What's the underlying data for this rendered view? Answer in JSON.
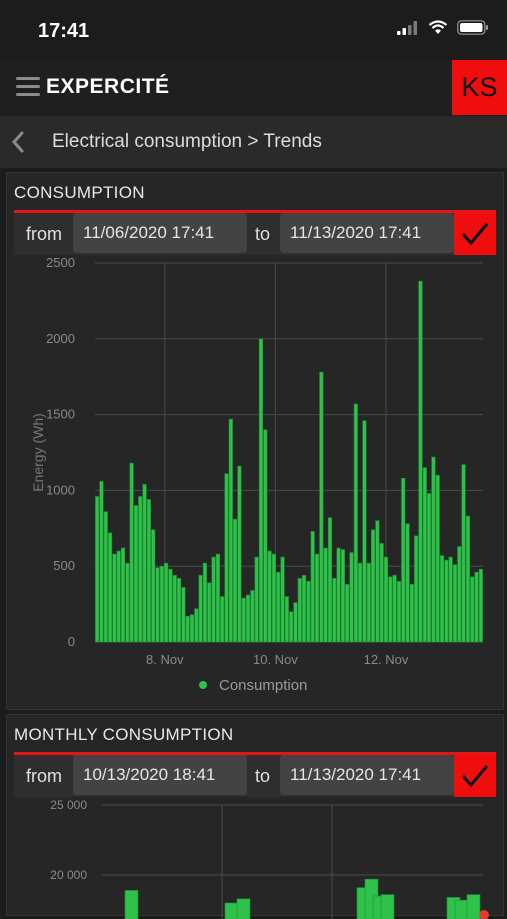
{
  "status_bar": {
    "time": "17:41"
  },
  "header": {
    "brand_prefix": "E",
    "brand_rest": "XPERCITÉ",
    "avatar_initials": "KS"
  },
  "breadcrumb": {
    "text": "Electrical consumption > Trends"
  },
  "consumption": {
    "title": "CONSUMPTION",
    "from_label": "from",
    "to_label": "to",
    "from_value": "11/06/2020 17:41",
    "to_value": "11/13/2020 17:41"
  },
  "monthly": {
    "title": "MONTHLY CONSUMPTION",
    "from_label": "from",
    "to_label": "to",
    "from_value": "10/13/2020 18:41",
    "to_value": "11/13/2020 17:41"
  },
  "colors": {
    "accent": "#ef0d0d",
    "bar": "#2ec24a",
    "bar_stroke": "#1f8f33"
  },
  "chart_data": [
    {
      "type": "bar",
      "title": "",
      "ylabel": "Energy (Wh)",
      "ylim": [
        0,
        2500
      ],
      "yticks": [
        "0",
        "500",
        "1000",
        "1500",
        "2000",
        "2500"
      ],
      "xticks": [
        "8. Nov",
        "10. Nov",
        "12. Nov"
      ],
      "legend": "Consumption",
      "legend_position": "bottom",
      "grid": true,
      "series": [
        {
          "name": "Consumption",
          "values": [
            960,
            1060,
            860,
            720,
            580,
            600,
            620,
            520,
            1180,
            900,
            960,
            1040,
            940,
            740,
            490,
            500,
            520,
            480,
            440,
            420,
            360,
            170,
            180,
            220,
            440,
            520,
            390,
            560,
            580,
            300,
            1110,
            1470,
            810,
            1160,
            290,
            310,
            340,
            560,
            2000,
            1400,
            600,
            580,
            460,
            560,
            300,
            200,
            260,
            420,
            440,
            400,
            730,
            580,
            1780,
            620,
            820,
            420,
            620,
            610,
            380,
            590,
            1570,
            520,
            1460,
            520,
            740,
            800,
            650,
            560,
            430,
            440,
            400,
            1080,
            780,
            380,
            700,
            2380,
            1150,
            980,
            1220,
            1100,
            570,
            540,
            560,
            510,
            630,
            1170,
            830,
            430,
            460,
            480
          ]
        }
      ]
    },
    {
      "type": "bar",
      "title": "",
      "ylim": [
        0,
        25000
      ],
      "yticks": [
        "20 000",
        "25 000"
      ],
      "series": [
        {
          "name": "",
          "values": [
            18900,
            18000,
            18300,
            19100,
            19700,
            18500,
            18600,
            18400,
            18200,
            18600
          ]
        }
      ]
    }
  ]
}
